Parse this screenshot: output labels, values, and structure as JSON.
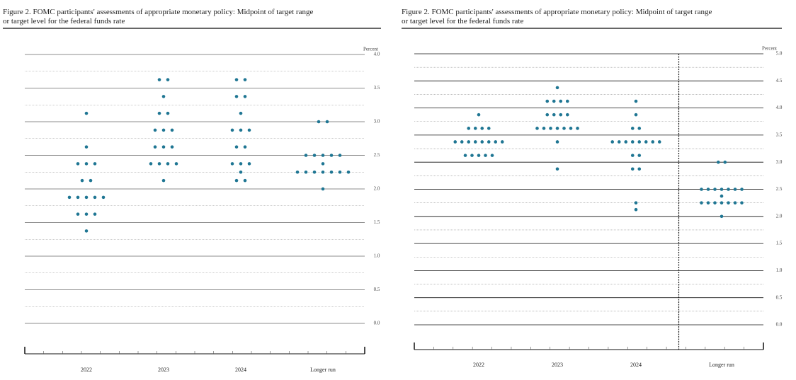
{
  "chart_data": [
    {
      "type": "dot",
      "title": [
        "Figure 2.  FOMC participants' assessments of appropriate monetary policy: Midpoint of target range",
        "or target level for the federal funds rate"
      ],
      "y_label": "Percent",
      "categories": [
        "2022",
        "2023",
        "2024",
        "Longer run"
      ],
      "values": [
        [
          3.125,
          2.625,
          2.375,
          2.375,
          2.375,
          2.125,
          2.125,
          1.875,
          1.875,
          1.875,
          1.875,
          1.875,
          1.625,
          1.625,
          1.625,
          1.375
        ],
        [
          3.625,
          3.625,
          3.375,
          3.125,
          3.125,
          2.875,
          2.875,
          2.875,
          2.625,
          2.625,
          2.625,
          2.375,
          2.375,
          2.375,
          2.375,
          2.125
        ],
        [
          3.625,
          3.625,
          3.375,
          3.375,
          3.125,
          2.875,
          2.875,
          2.875,
          2.625,
          2.625,
          2.375,
          2.375,
          2.375,
          2.25,
          2.125,
          2.125
        ],
        [
          3,
          3,
          2.5,
          2.5,
          2.5,
          2.5,
          2.5,
          2.375,
          2.25,
          2.25,
          2.25,
          2.25,
          2.25,
          2.25,
          2.25,
          2
        ]
      ],
      "color": "#1f7693",
      "ylim": [
        0,
        4
      ],
      "yticks": [
        {
          "value": 0,
          "label": "0.0"
        },
        {
          "value": 0.5,
          "label": "0.5"
        },
        {
          "value": 1,
          "label": "1.0"
        },
        {
          "value": 1.5,
          "label": "1.5"
        },
        {
          "value": 2,
          "label": "2.0"
        },
        {
          "value": 2.5,
          "label": "2.5"
        },
        {
          "value": 3,
          "label": "3.0"
        },
        {
          "value": 3.5,
          "label": "3.5"
        },
        {
          "value": 4,
          "label": "4.0"
        }
      ],
      "grid": true,
      "divider_before_last": false
    },
    {
      "type": "dot",
      "title": [
        "Figure 2.  FOMC participants' assessments of appropriate monetary policy: Midpoint of target range",
        "or target level for the federal funds rate"
      ],
      "y_label": "Percent",
      "categories": [
        "2022",
        "2023",
        "2024",
        "Longer run"
      ],
      "values": [
        [
          3.875,
          3.625,
          3.625,
          3.625,
          3.625,
          3.375,
          3.375,
          3.375,
          3.375,
          3.375,
          3.375,
          3.375,
          3.375,
          3.125,
          3.125,
          3.125,
          3.125,
          3.125
        ],
        [
          4.375,
          4.125,
          4.125,
          4.125,
          4.125,
          3.875,
          3.875,
          3.875,
          3.875,
          3.625,
          3.625,
          3.625,
          3.625,
          3.625,
          3.625,
          3.625,
          3.375,
          2.875
        ],
        [
          4.125,
          3.875,
          3.625,
          3.625,
          3.375,
          3.375,
          3.375,
          3.375,
          3.375,
          3.375,
          3.375,
          3.375,
          3.125,
          3.125,
          2.875,
          2.875,
          2.25,
          2.125
        ],
        [
          3,
          3,
          2.5,
          2.5,
          2.5,
          2.5,
          2.5,
          2.5,
          2.5,
          2.375,
          2.25,
          2.25,
          2.25,
          2.25,
          2.25,
          2.25,
          2.25,
          2
        ]
      ],
      "color": "#1f7693",
      "ylim": [
        0,
        5
      ],
      "yticks": [
        {
          "value": 0,
          "label": "0.0"
        },
        {
          "value": 0.5,
          "label": "0.5"
        },
        {
          "value": 1,
          "label": "1.0"
        },
        {
          "value": 1.5,
          "label": "1.5"
        },
        {
          "value": 2,
          "label": "2.0"
        },
        {
          "value": 2.5,
          "label": "2.5"
        },
        {
          "value": 3,
          "label": "3.0"
        },
        {
          "value": 3.5,
          "label": "3.5"
        },
        {
          "value": 4,
          "label": "4.0"
        },
        {
          "value": 4.5,
          "label": "4.5"
        },
        {
          "value": 5,
          "label": "5.0"
        }
      ],
      "grid": true,
      "divider_before_last": true
    }
  ]
}
